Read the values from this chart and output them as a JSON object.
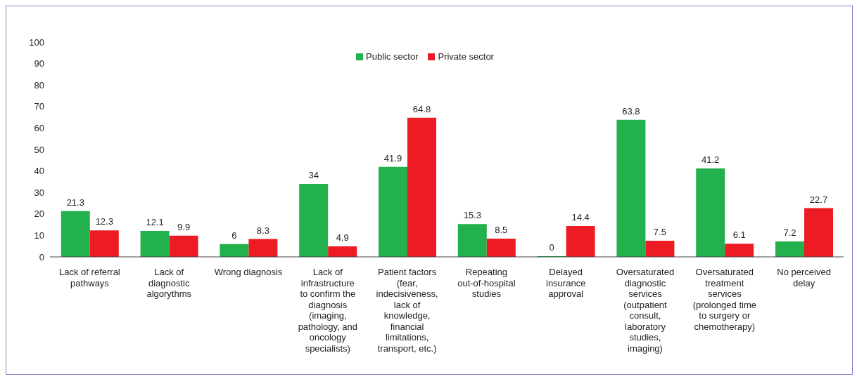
{
  "chart_data": {
    "type": "bar",
    "categories": [
      "Lack of referral pathways",
      "Lack of diagnostic algorythms",
      "Wrong diagnosis",
      "Lack of infrastructure to confirm the diagnosis (imaging, pathology, and oncology specialists)",
      "Patient factors (fear, indecisiveness, lack of knowledge, financial limitations, transport, etc.)",
      "Repeating out-of-hospital studies",
      "Delayed insurance approval",
      "Oversaturated diagnostic services (outpatient consult, laboratory studies, imaging)",
      "Oversaturated treatment services (prolonged time to surgery or chemotherapy)",
      "No perceived delay"
    ],
    "series": [
      {
        "name": "Public sector",
        "color": "#22b14c",
        "values": [
          21.3,
          12.1,
          6,
          34,
          41.9,
          15.3,
          0,
          63.8,
          41.2,
          7.2
        ]
      },
      {
        "name": "Private sector",
        "color": "#ed1c24",
        "values": [
          12.3,
          9.9,
          8.3,
          4.9,
          64.8,
          8.5,
          14.4,
          7.5,
          6.1,
          22.7
        ]
      }
    ],
    "ylim": [
      0,
      100
    ],
    "yticks": [
      0,
      10,
      20,
      30,
      40,
      50,
      60,
      70,
      80,
      90,
      100
    ],
    "grid": false,
    "legend": "top",
    "data_labels": true
  }
}
